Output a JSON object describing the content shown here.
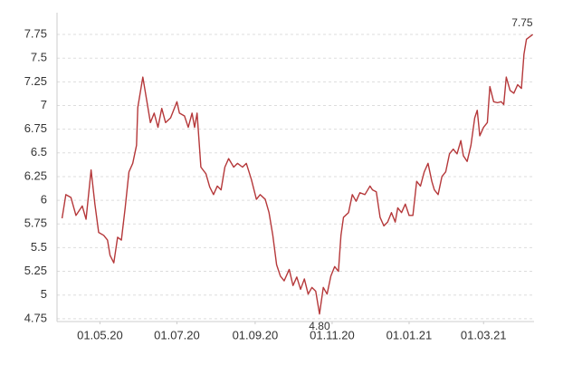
{
  "chart_data": {
    "type": "line",
    "color": "#b5383a",
    "grid": true,
    "x": [
      "2020-04-01",
      "2020-04-04",
      "2020-04-08",
      "2020-04-12",
      "2020-04-17",
      "2020-04-20",
      "2020-04-24",
      "2020-04-27",
      "2020-04-30",
      "2020-05-04",
      "2020-05-07",
      "2020-05-09",
      "2020-05-12",
      "2020-05-15",
      "2020-05-18",
      "2020-05-21",
      "2020-05-24",
      "2020-05-27",
      "2020-05-30",
      "2020-05-31",
      "2020-06-04",
      "2020-06-07",
      "2020-06-10",
      "2020-06-13",
      "2020-06-16",
      "2020-06-19",
      "2020-06-22",
      "2020-06-26",
      "2020-07-01",
      "2020-07-03",
      "2020-07-07",
      "2020-07-10",
      "2020-07-13",
      "2020-07-15",
      "2020-07-17",
      "2020-07-20",
      "2020-07-24",
      "2020-07-27",
      "2020-07-30",
      "2020-08-02",
      "2020-08-05",
      "2020-08-08",
      "2020-08-11",
      "2020-08-15",
      "2020-08-18",
      "2020-08-22",
      "2020-08-25",
      "2020-08-29",
      "2020-09-02",
      "2020-09-05",
      "2020-09-09",
      "2020-09-12",
      "2020-09-15",
      "2020-09-18",
      "2020-09-21",
      "2020-09-24",
      "2020-09-28",
      "2020-10-01",
      "2020-10-04",
      "2020-10-07",
      "2020-10-10",
      "2020-10-13",
      "2020-10-16",
      "2020-10-19",
      "2020-10-22",
      "2020-10-25",
      "2020-10-28",
      "2020-10-31",
      "2020-11-03",
      "2020-11-06",
      "2020-11-08",
      "2020-11-10",
      "2020-11-14",
      "2020-11-17",
      "2020-11-20",
      "2020-11-23",
      "2020-11-27",
      "2020-12-01",
      "2020-12-03",
      "2020-12-06",
      "2020-12-09",
      "2020-12-12",
      "2020-12-15",
      "2020-12-18",
      "2020-12-21",
      "2020-12-23",
      "2020-12-26",
      "2020-12-29",
      "2021-01-01",
      "2021-01-04",
      "2021-01-07",
      "2021-01-10",
      "2021-01-13",
      "2021-01-16",
      "2021-01-19",
      "2021-01-21",
      "2021-01-24",
      "2021-01-27",
      "2021-01-30",
      "2021-02-02",
      "2021-02-05",
      "2021-02-08",
      "2021-02-11",
      "2021-02-13",
      "2021-02-16",
      "2021-02-19",
      "2021-02-22",
      "2021-02-24",
      "2021-02-26",
      "2021-03-01",
      "2021-03-04",
      "2021-03-06",
      "2021-03-09",
      "2021-03-12",
      "2021-03-15",
      "2021-03-17",
      "2021-03-19",
      "2021-03-22",
      "2021-03-25",
      "2021-03-28",
      "2021-03-31",
      "2021-04-02",
      "2021-04-04",
      "2021-04-09"
    ],
    "values": [
      5.81,
      6.06,
      6.03,
      5.84,
      5.94,
      5.8,
      6.32,
      5.96,
      5.66,
      5.63,
      5.58,
      5.42,
      5.34,
      5.61,
      5.58,
      5.92,
      6.3,
      6.39,
      6.58,
      6.98,
      7.3,
      7.06,
      6.82,
      6.92,
      6.77,
      6.97,
      6.82,
      6.87,
      7.04,
      6.92,
      6.89,
      6.77,
      6.92,
      6.77,
      6.92,
      6.35,
      6.28,
      6.14,
      6.06,
      6.15,
      6.11,
      6.35,
      6.44,
      6.35,
      6.39,
      6.35,
      6.39,
      6.22,
      6.01,
      6.06,
      6.01,
      5.87,
      5.63,
      5.32,
      5.2,
      5.15,
      5.27,
      5.1,
      5.19,
      5.06,
      5.17,
      5.01,
      5.08,
      5.04,
      4.8,
      5.08,
      5.01,
      5.2,
      5.3,
      5.25,
      5.63,
      5.82,
      5.87,
      6.06,
      5.99,
      6.08,
      6.06,
      6.15,
      6.11,
      6.09,
      5.82,
      5.73,
      5.77,
      5.87,
      5.77,
      5.92,
      5.87,
      5.96,
      5.84,
      5.84,
      6.2,
      6.15,
      6.3,
      6.39,
      6.2,
      6.11,
      6.06,
      6.25,
      6.3,
      6.49,
      6.54,
      6.49,
      6.63,
      6.47,
      6.41,
      6.58,
      6.87,
      6.95,
      6.68,
      6.77,
      6.82,
      7.2,
      7.04,
      7.03,
      7.04,
      7.01,
      7.3,
      7.16,
      7.13,
      7.22,
      7.18,
      7.54,
      7.7,
      7.75
    ],
    "value_labels": [
      null,
      null,
      null,
      null,
      null,
      null,
      null,
      null,
      null,
      null,
      null,
      null,
      null,
      null,
      null,
      null,
      null,
      null,
      null,
      null,
      null,
      null,
      null,
      null,
      null,
      null,
      null,
      null,
      null,
      null,
      null,
      null,
      null,
      null,
      null,
      null,
      null,
      null,
      null,
      null,
      null,
      null,
      null,
      null,
      null,
      null,
      null,
      null,
      null,
      null,
      null,
      null,
      null,
      null,
      null,
      null,
      null,
      null,
      null,
      null,
      null,
      null,
      null,
      null,
      "4.80",
      null,
      null,
      null,
      null,
      null,
      null,
      null,
      null,
      null,
      null,
      null,
      null,
      null,
      null,
      null,
      null,
      null,
      null,
      null,
      null,
      null,
      null,
      null,
      null,
      null,
      null,
      null,
      null,
      null,
      null,
      null,
      null,
      null,
      null,
      null,
      null,
      null,
      null,
      null,
      null,
      null,
      null,
      null,
      null,
      null,
      null,
      null,
      null,
      null,
      null,
      null,
      null,
      null,
      null,
      null,
      null,
      null,
      null,
      "7.75"
    ],
    "xlim": [
      "2020-03-28",
      "2021-04-10"
    ],
    "xticks": [
      {
        "value": "2020-05-01",
        "label": "01.05.20"
      },
      {
        "value": "2020-07-01",
        "label": "01.07.20"
      },
      {
        "value": "2020-09-01",
        "label": "01.09.20"
      },
      {
        "value": "2020-11-01",
        "label": "01.11.20"
      },
      {
        "value": "2021-01-01",
        "label": "01.01.21"
      },
      {
        "value": "2021-03-01",
        "label": "01.03.21"
      }
    ],
    "ylim": [
      4.72,
      7.98
    ],
    "yticks": [
      4.75,
      5,
      5.25,
      5.5,
      5.75,
      6,
      6.25,
      6.5,
      6.75,
      7,
      7.25,
      7.5,
      7.75
    ]
  }
}
